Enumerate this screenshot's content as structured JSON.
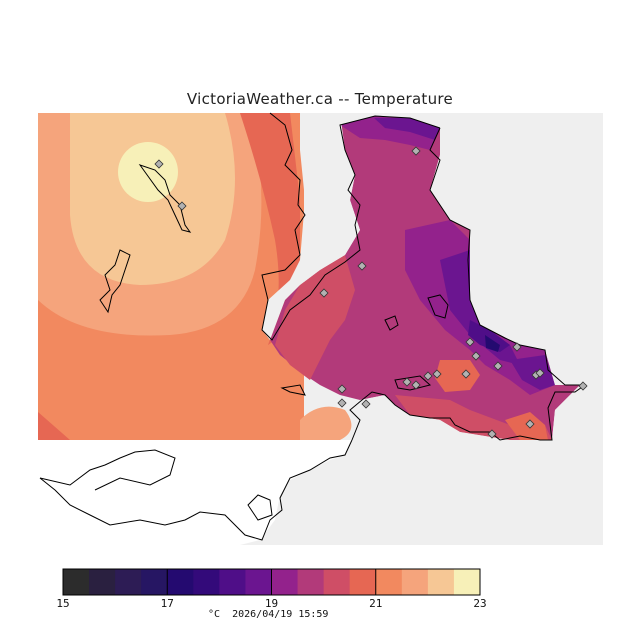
{
  "title": "VictoriaWeather.ca -- Temperature",
  "footer": {
    "unit": "°C",
    "timestamp": "2026/04/19 15:59"
  },
  "legend": {
    "min": 15,
    "max": 23,
    "tick_labels": [
      "15",
      "17",
      "19",
      "21",
      "23"
    ],
    "colors": [
      "#2c2c2c",
      "#2a2040",
      "#2d1c55",
      "#261663",
      "#240a70",
      "#330a7a",
      "#4f0e88",
      "#6b1590",
      "#93228c",
      "#b23a7a",
      "#cf4e66",
      "#e66753",
      "#f2895f",
      "#f5a47c",
      "#f6c795",
      "#f7f0b8"
    ]
  },
  "stations": {
    "count_shown": 24,
    "marker": "diamond-icon"
  },
  "colors": {
    "no_data": "#efefef",
    "background": "#ffffff",
    "coastline": "#000000"
  }
}
